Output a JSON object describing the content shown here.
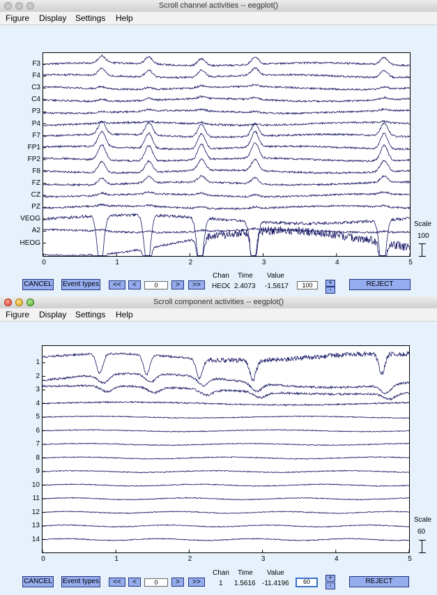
{
  "colors": {
    "trace": "#101060",
    "button": "#95acee",
    "background": "#e6f1fb"
  },
  "window1": {
    "title": "Scroll channel activities -- eegplot()",
    "menu": [
      "Figure",
      "Display",
      "Settings",
      "Help"
    ],
    "chart_data": {
      "type": "line",
      "x_ticks": [
        "0",
        "1",
        "2",
        "3",
        "4",
        "5"
      ],
      "xlim": [
        0,
        5
      ],
      "channels": [
        "F3",
        "F4",
        "C3",
        "C4",
        "P3",
        "P4",
        "F7",
        "FP1",
        "FP2",
        "F8",
        "FZ",
        "CZ",
        "PZ",
        "VEOG",
        "A2",
        "HEOG"
      ],
      "blink_times": [
        0.78,
        1.42,
        2.14,
        2.87,
        4.63
      ]
    },
    "scale": {
      "label": "Scale",
      "value": "100"
    },
    "buttons": {
      "cancel": "CANCEL",
      "event_types": "Event types",
      "first": "<<",
      "prev": "<",
      "next": ">",
      "last": ">>",
      "reject": "REJECT",
      "plus": "+",
      "minus": "-"
    },
    "position_value": "0",
    "scale_value": "100",
    "info": {
      "chan_label": "Chan",
      "time_label": "Time",
      "value_label": "Value",
      "chan": "HEOG",
      "time": "2.4073",
      "value": "-1.5617"
    }
  },
  "window2": {
    "title": "Scroll component activities -- eegplot()",
    "menu": [
      "Figure",
      "Display",
      "Settings",
      "Help"
    ],
    "chart_data": {
      "type": "line",
      "x_ticks": [
        "0",
        "1",
        "2",
        "3",
        "4",
        "5"
      ],
      "xlim": [
        0,
        5
      ],
      "channels": [
        "1",
        "2",
        "3",
        "4",
        "5",
        "6",
        "7",
        "8",
        "9",
        "10",
        "11",
        "12",
        "13",
        "14"
      ]
    },
    "scale": {
      "label": "Scale",
      "value": "60"
    },
    "buttons": {
      "cancel": "CANCEL",
      "event_types": "Event types",
      "first": "<<",
      "prev": "<",
      "next": ">",
      "last": ">>",
      "reject": "REJECT",
      "plus": "+",
      "minus": "-"
    },
    "position_value": "0",
    "scale_value": "60",
    "info": {
      "chan_label": "Chan",
      "time_label": "Time",
      "value_label": "Value",
      "chan": "1",
      "time": "1.5616",
      "value": "-11.4196"
    }
  }
}
